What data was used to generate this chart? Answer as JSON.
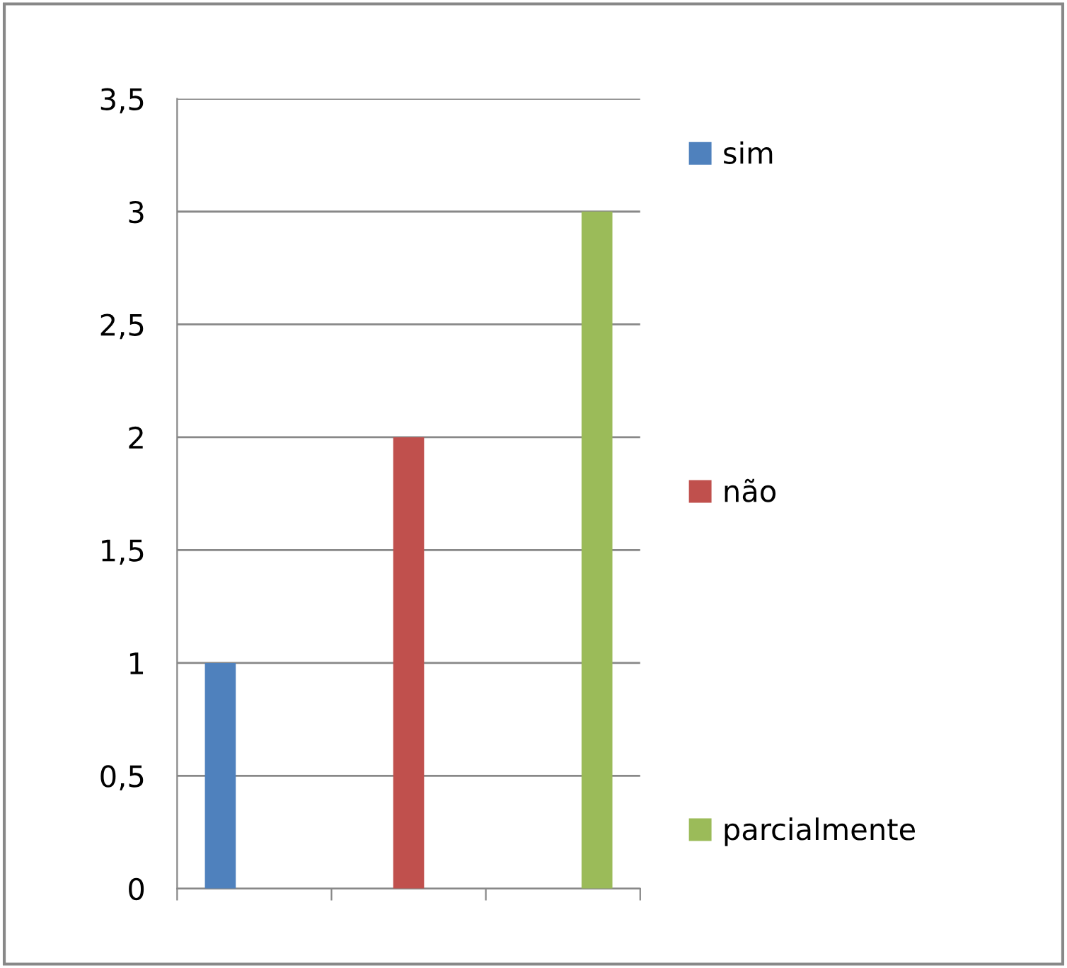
{
  "chart_data": {
    "type": "bar",
    "categories": [
      null,
      null,
      null
    ],
    "series": [
      {
        "name": "sim",
        "color": "#4f81bd",
        "values": [
          1,
          null,
          null
        ]
      },
      {
        "name": "não",
        "color": "#c0504d",
        "values": [
          null,
          2,
          null
        ]
      },
      {
        "name": "parcialmente",
        "color": "#9bbb59",
        "values": [
          null,
          null,
          3
        ]
      }
    ],
    "ylim": [
      0,
      3.5
    ],
    "yticks": [
      0,
      {
        "value": 0.5,
        "label": "0,5"
      },
      1,
      {
        "value": 1.5,
        "label": "1,5"
      },
      2,
      {
        "value": 2.5,
        "label": "2,5"
      },
      3,
      {
        "value": 3.5,
        "label": "3,5"
      }
    ],
    "grid": "y",
    "legend": "right"
  }
}
